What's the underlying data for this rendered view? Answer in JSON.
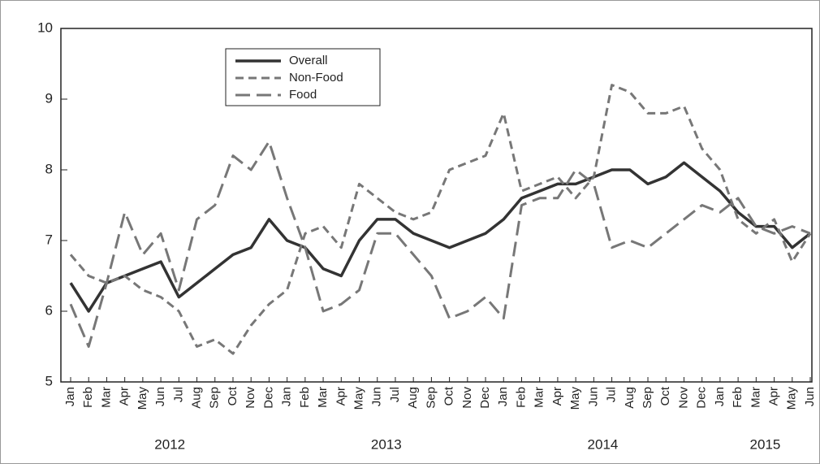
{
  "chart_data": {
    "type": "line",
    "categories": [
      "Jan",
      "Feb",
      "Mar",
      "Apr",
      "May",
      "Jun",
      "Jul",
      "Aug",
      "Sep",
      "Oct",
      "Nov",
      "Dec",
      "Jan",
      "Feb",
      "Mar",
      "Apr",
      "May",
      "Jun",
      "Jul",
      "Aug",
      "Sep",
      "Oct",
      "Nov",
      "Dec",
      "Jan",
      "Feb",
      "Mar",
      "Apr",
      "May",
      "Jun",
      "Jul",
      "Aug",
      "Sep",
      "Oct",
      "Nov",
      "Dec",
      "Jan",
      "Feb",
      "Mar",
      "Apr",
      "May",
      "Jun"
    ],
    "years": [
      "2012",
      "2013",
      "2014",
      "2015"
    ],
    "series": [
      {
        "name": "Overall",
        "color": "#333333",
        "style": "solid",
        "values": [
          6.4,
          6.0,
          6.4,
          6.5,
          6.6,
          6.7,
          6.2,
          6.4,
          6.6,
          6.8,
          6.9,
          7.3,
          7.0,
          6.9,
          6.6,
          6.5,
          7.0,
          7.3,
          7.3,
          7.1,
          7.0,
          6.9,
          7.0,
          7.1,
          7.3,
          7.6,
          7.7,
          7.8,
          7.8,
          7.9,
          8.0,
          8.0,
          7.8,
          7.9,
          8.1,
          7.9,
          7.7,
          7.4,
          7.2,
          7.2,
          6.9,
          7.1
        ]
      },
      {
        "name": "Non-Food",
        "color": "#777777",
        "style": "dash",
        "values": [
          6.8,
          6.5,
          6.4,
          6.5,
          6.3,
          6.2,
          6.0,
          5.5,
          5.6,
          5.4,
          5.8,
          6.1,
          6.3,
          7.1,
          7.2,
          6.9,
          7.8,
          7.6,
          7.4,
          7.3,
          7.4,
          8.0,
          8.1,
          8.2,
          8.8,
          7.7,
          7.8,
          7.9,
          7.6,
          7.9,
          9.2,
          9.1,
          8.8,
          8.8,
          8.9,
          8.3,
          8.0,
          7.3,
          7.1,
          7.3,
          6.7,
          7.1
        ]
      },
      {
        "name": "Food",
        "color": "#777777",
        "style": "longdash",
        "values": [
          6.1,
          5.5,
          6.4,
          7.4,
          6.8,
          7.1,
          6.3,
          7.3,
          7.5,
          8.2,
          8.0,
          8.4,
          7.6,
          6.9,
          6.0,
          6.1,
          6.3,
          7.1,
          7.1,
          6.8,
          6.5,
          5.9,
          6.0,
          6.2,
          5.9,
          7.5,
          7.6,
          7.6,
          8.0,
          7.8,
          6.9,
          7.0,
          6.9,
          7.1,
          7.3,
          7.5,
          7.4,
          7.6,
          7.2,
          7.1,
          7.2,
          7.1
        ]
      }
    ],
    "ylim": [
      5,
      10
    ],
    "yticks": [
      5,
      6,
      7,
      8,
      9,
      10
    ],
    "grid": false,
    "legend": "upper-left"
  }
}
